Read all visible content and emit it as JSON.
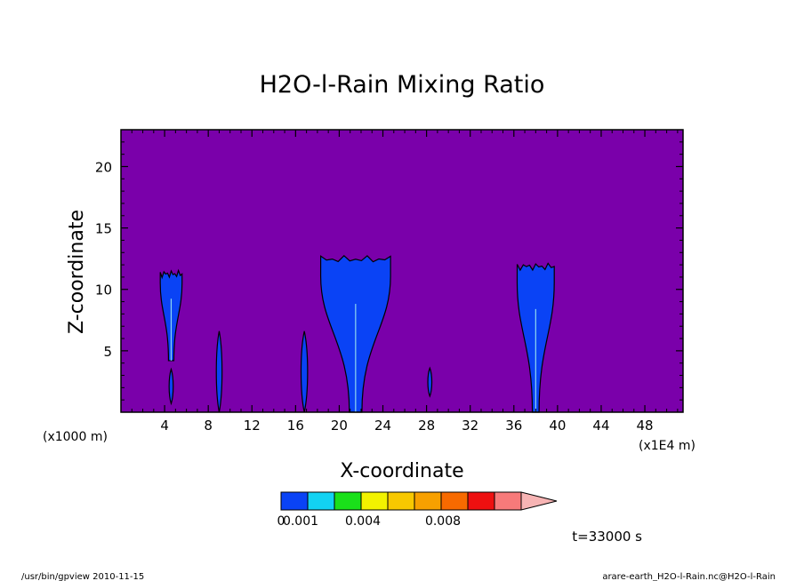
{
  "chart_data": {
    "type": "heatmap",
    "title": "H2O-l-Rain Mixing Ratio",
    "xlabel": "X-coordinate",
    "ylabel": "Z-coordinate",
    "x_unit_left": "(x1000 m)",
    "x_unit_right": "(x1E4 m)",
    "xlim": [
      0,
      51.5
    ],
    "ylim": [
      0,
      23
    ],
    "x_ticks": [
      4,
      8,
      12,
      16,
      20,
      24,
      28,
      32,
      36,
      40,
      44,
      48
    ],
    "x_tick_labels": [
      "4",
      "8",
      "12",
      "16",
      "20",
      "24",
      "28",
      "32",
      "36",
      "40",
      "44",
      "48"
    ],
    "y_ticks": [
      5,
      10,
      15,
      20
    ],
    "y_tick_labels": [
      "5",
      "10",
      "15",
      "20"
    ],
    "background_color": "#7a00aa",
    "contour_color": "#0a43f5",
    "grid": false,
    "cells": [
      {
        "x": 4.6,
        "z_bottom": 4.2,
        "z_top": 11.4,
        "half_width": 1.0
      },
      {
        "x": 4.6,
        "z_bottom": 0.7,
        "z_top": 3.5,
        "half_width": 0.25
      },
      {
        "x": 9.0,
        "z_bottom": 0.0,
        "z_top": 6.6,
        "half_width": 0.35
      },
      {
        "x": 16.8,
        "z_bottom": 0.0,
        "z_top": 6.6,
        "half_width": 0.4
      },
      {
        "x": 21.5,
        "z_bottom": 0.0,
        "z_top": 12.6,
        "half_width": 3.2
      },
      {
        "x": 28.3,
        "z_bottom": 1.3,
        "z_top": 3.6,
        "half_width": 0.15
      },
      {
        "x": 38.0,
        "z_bottom": 0.0,
        "z_top": 12.0,
        "half_width": 1.7
      }
    ],
    "colorbar": {
      "colors": [
        "#0a43f5",
        "#12d2f2",
        "#1ae01a",
        "#f2f200",
        "#f8c800",
        "#f7a000",
        "#f76a00",
        "#ee1010",
        "#f77a7a",
        "#f7b4b4"
      ],
      "tick_labels": [
        "0.001",
        "0.004",
        "0.008"
      ],
      "extra_label": "0"
    },
    "time_label": "t=33000 s"
  },
  "footer": {
    "left": "/usr/bin/gpview   2010-11-15",
    "right": "arare-earth_H2O-l-Rain.nc@H2O-l-Rain"
  }
}
